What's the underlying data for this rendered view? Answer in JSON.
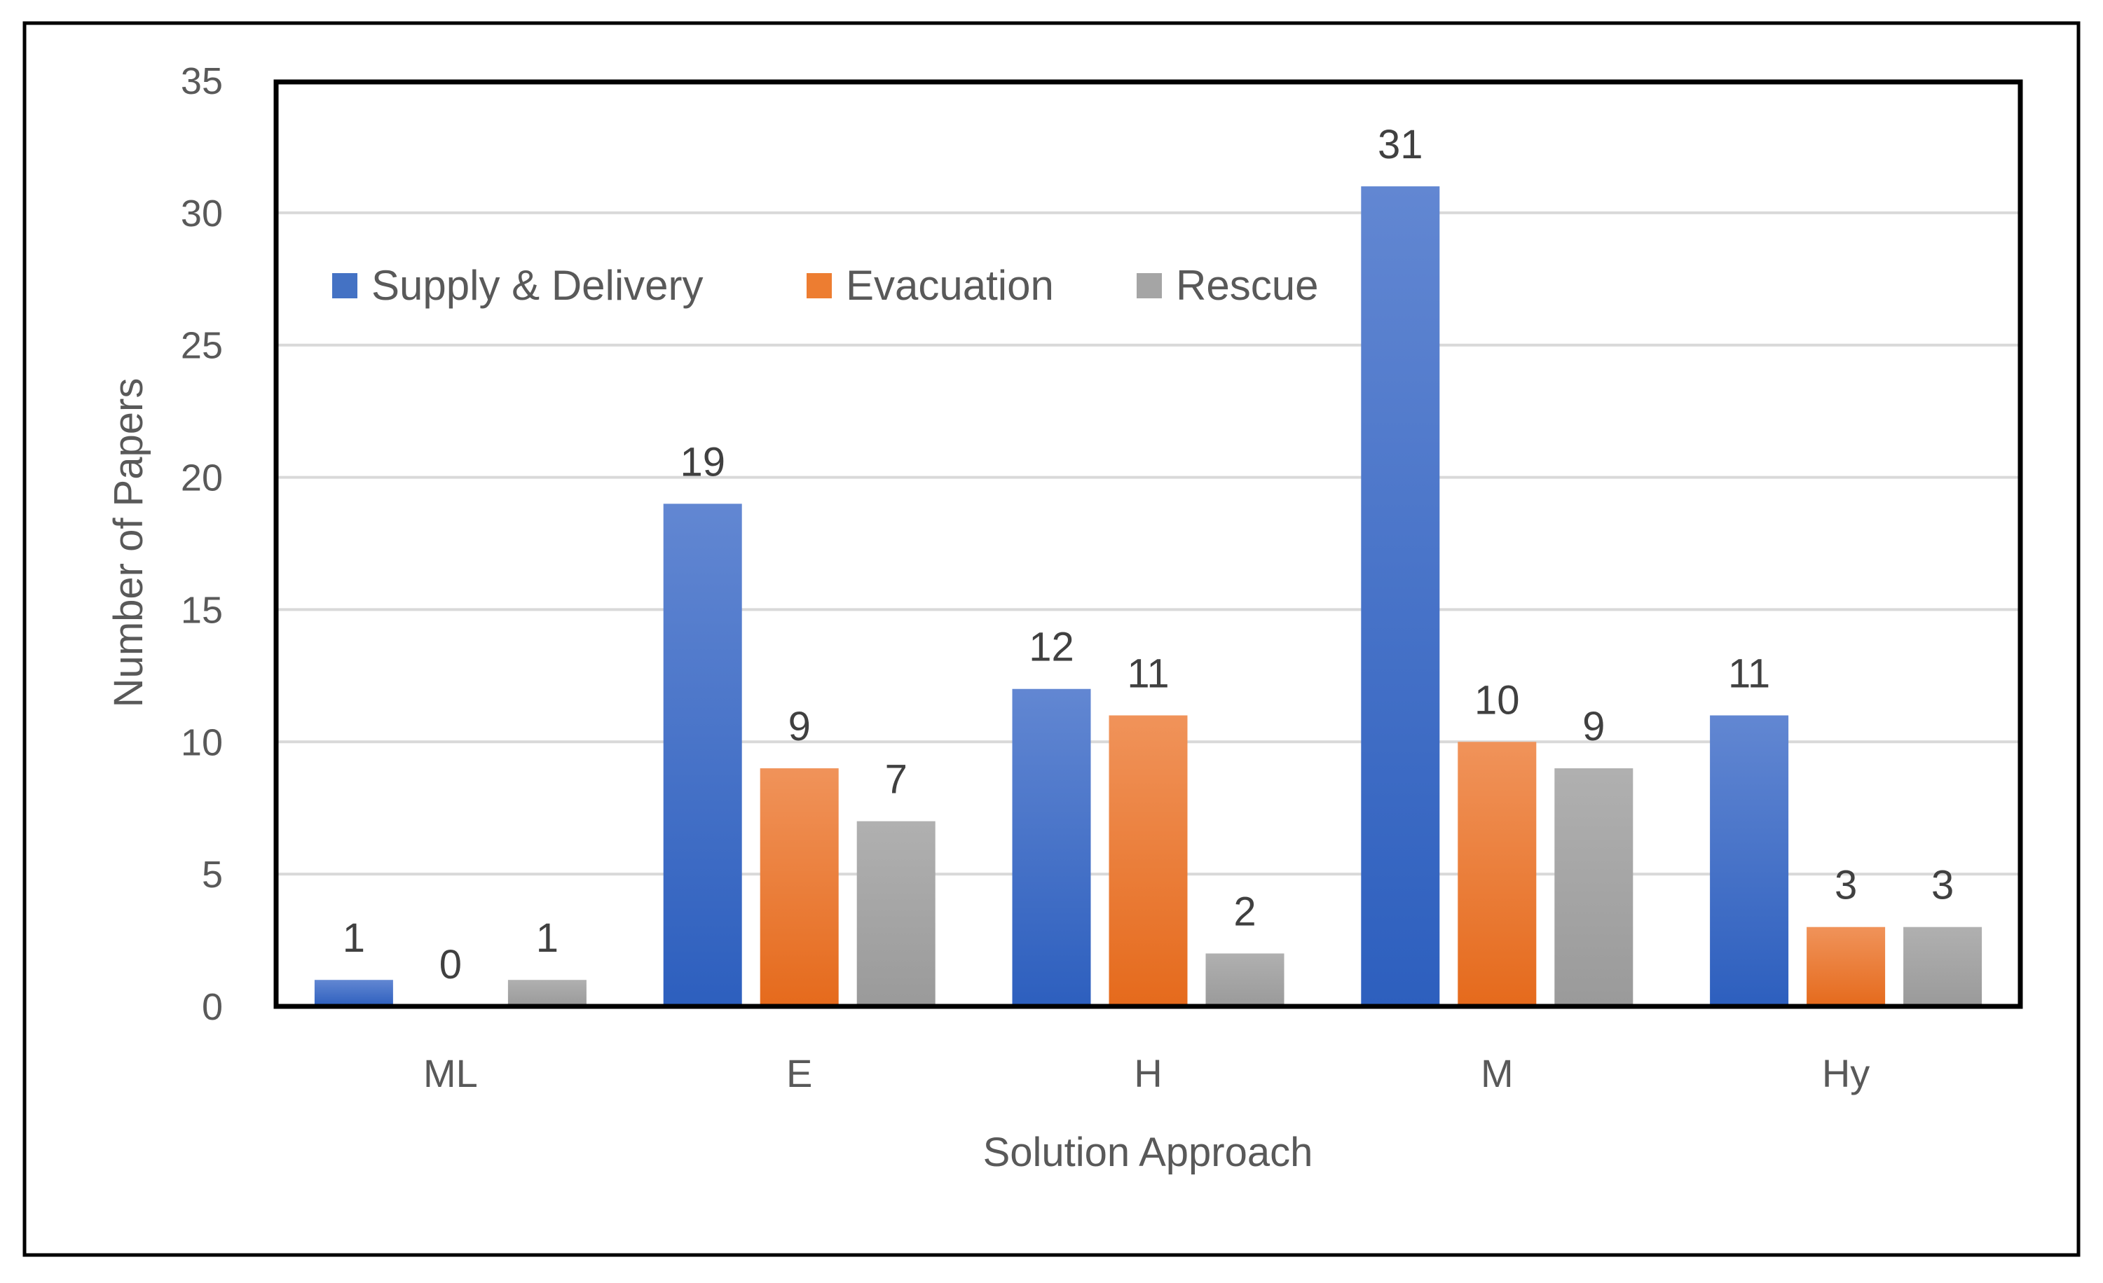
{
  "chart_data": {
    "type": "bar",
    "title": "",
    "xlabel": "Solution Approach",
    "ylabel": "Number of Papers",
    "ylim": [
      0,
      35
    ],
    "yticks": [
      0,
      5,
      10,
      15,
      20,
      25,
      30,
      35
    ],
    "grid": true,
    "legend_position": "top-left",
    "categories": [
      "ML",
      "E",
      "H",
      "M",
      "Hy"
    ],
    "series": [
      {
        "name": "Supply & Delivery",
        "color": "#4472C4",
        "values": [
          1,
          19,
          12,
          31,
          11
        ]
      },
      {
        "name": "Evacuation",
        "color": "#ED7D31",
        "values": [
          0,
          9,
          11,
          10,
          3
        ]
      },
      {
        "name": "Rescue",
        "color": "#A5A5A5",
        "values": [
          1,
          7,
          2,
          9,
          3
        ]
      }
    ]
  }
}
